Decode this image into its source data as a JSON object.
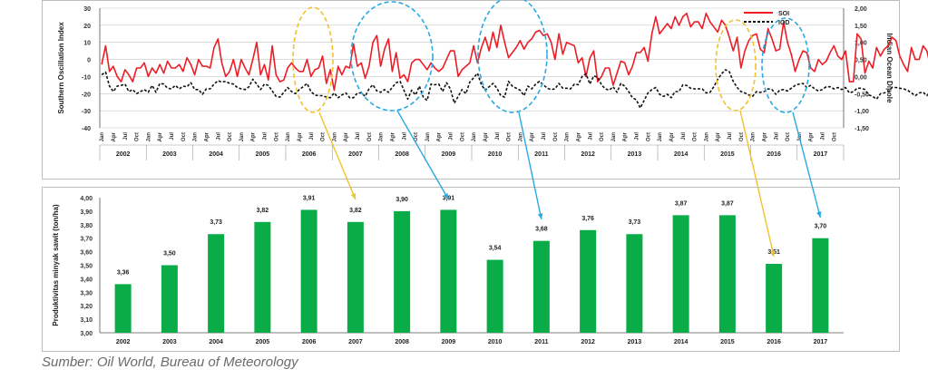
{
  "colors": {
    "soi": "#ee1c25",
    "iod": "#111111",
    "bar": "#0aac48",
    "yellow_arrow": "#f2c12e",
    "blue_arrow": "#29a9e1",
    "grid": "#c8c8c8"
  },
  "chart_data": [
    {
      "type": "line",
      "title": "",
      "ylabel": "Southern Oscillation Index",
      "y2label": "Indian Ocean Dipole",
      "ylim": [
        -40,
        30
      ],
      "y_ticks": [
        "30",
        "20",
        "10",
        "0",
        "-10",
        "-20",
        "-30",
        "-40"
      ],
      "y2lim": [
        -1.5,
        2.0
      ],
      "y2_ticks": [
        "2,00",
        "1,50",
        "1,00",
        "0,50",
        "0,00",
        "-0,50",
        "-1,00",
        "-1,50"
      ],
      "month_ticks": [
        "Jan",
        "Apr",
        "Jul",
        "Oct"
      ],
      "years": [
        "2002",
        "2003",
        "2004",
        "2005",
        "2006",
        "2007",
        "2008",
        "2009",
        "2010",
        "2011",
        "2012",
        "2013",
        "2014",
        "2015",
        "2016",
        "2017"
      ],
      "legend": [
        "SOI",
        "IOD"
      ],
      "legend_position": "top-right",
      "series": [
        {
          "name": "SOI",
          "axis": "left",
          "values": [
            -3,
            8,
            -7,
            -4,
            -10,
            -13,
            -6,
            -9,
            -13,
            -5,
            -5,
            -2,
            -10,
            -5,
            -8,
            -3,
            -8,
            -1,
            -5,
            -5,
            -3,
            -7,
            1,
            -3,
            -9,
            0,
            -4,
            -4,
            -5,
            7,
            12,
            -2,
            -10,
            -7,
            0,
            -10,
            0,
            -5,
            -9,
            0,
            10,
            -9,
            -3,
            -12,
            8,
            -9,
            -13,
            -12,
            -5,
            -2,
            -5,
            -7,
            -7,
            0,
            -10,
            -6,
            -5,
            2,
            -14,
            -6,
            -18,
            -4,
            -9,
            -4,
            -5,
            9,
            -4,
            -2,
            -11,
            -4,
            10,
            14,
            -4,
            6,
            12,
            -7,
            4,
            -11,
            -9,
            -13,
            -2,
            0,
            0,
            -3,
            -6,
            -2,
            -5,
            -7,
            -5,
            0,
            5,
            5,
            -10,
            -6,
            -4,
            -2,
            8,
            -2,
            7,
            13,
            5,
            16,
            7,
            20,
            10,
            1,
            4,
            7,
            11,
            6,
            10,
            12,
            16,
            17,
            14,
            15,
            10,
            0,
            15,
            3,
            10,
            9,
            8,
            -2,
            1,
            -10,
            1,
            5,
            -13,
            -10,
            -5,
            -5,
            -15,
            -8,
            -1,
            -2,
            -9,
            -4,
            4,
            4,
            7,
            -1,
            15,
            25,
            15,
            18,
            21,
            18,
            25,
            20,
            25,
            27,
            19,
            22,
            22,
            18,
            27,
            22,
            19,
            16,
            23,
            20,
            13,
            5,
            13,
            -5,
            5,
            11,
            14,
            15,
            6,
            4,
            18,
            12,
            5,
            6,
            22,
            10,
            3,
            -7,
            0,
            5,
            4,
            -5,
            -7,
            0,
            -3,
            -1,
            4,
            8,
            2,
            0,
            5,
            -13,
            -13,
            15,
            12,
            -8,
            -1,
            -5,
            7,
            2,
            6,
            8,
            13,
            11,
            2,
            -3,
            -7,
            7,
            0,
            0,
            8,
            5,
            -5,
            3,
            0,
            -3,
            10,
            -2,
            -11,
            -3,
            0,
            9,
            4,
            -3,
            0,
            7,
            -8,
            -1,
            -8,
            -9,
            -11,
            -11,
            2,
            -15,
            -19,
            -18,
            -20,
            -16,
            -21,
            -11,
            -14,
            -16,
            -9,
            -8,
            -22,
            -22,
            -18,
            -19,
            1,
            -9,
            4,
            10,
            15,
            7,
            3,
            12,
            10,
            8,
            16,
            5,
            9,
            2,
            4,
            3,
            6,
            3,
            12,
            -5,
            -10,
            2,
            5,
            -8,
            6,
            9,
            10,
            4,
            6,
            9,
            12,
            8,
            8,
            13,
            0
          ]
        },
        {
          "name": "IOD",
          "axis": "right",
          "values": [
            0.05,
            0.13,
            -0.28,
            -0.44,
            -0.28,
            -0.26,
            -0.22,
            -0.44,
            -0.38,
            -0.5,
            -0.44,
            -0.38,
            -0.46,
            -0.26,
            -0.46,
            -0.2,
            -0.22,
            -0.34,
            -0.36,
            -0.26,
            -0.36,
            -0.28,
            -0.3,
            -0.18,
            -0.38,
            -0.38,
            -0.52,
            -0.36,
            -0.36,
            -0.22,
            -0.12,
            -0.16,
            -0.14,
            -0.2,
            -0.22,
            -0.32,
            -0.36,
            -0.38,
            -0.3,
            -0.08,
            -0.22,
            -0.38,
            -0.22,
            -0.26,
            -0.42,
            -0.58,
            -0.6,
            -0.46,
            -0.32,
            -0.44,
            -0.5,
            -0.38,
            -0.3,
            -0.2,
            -0.44,
            -0.54,
            -0.56,
            -0.56,
            -0.6,
            -0.62,
            -0.48,
            -0.62,
            -0.54,
            -0.48,
            -0.62,
            -0.62,
            -0.48,
            -0.48,
            -0.58,
            -0.36,
            -0.24,
            -0.42,
            -0.46,
            -0.38,
            -0.46,
            -0.32,
            -0.18,
            -0.14,
            -0.4,
            -0.66,
            -0.4,
            -0.54,
            -0.28,
            -0.6,
            -0.7,
            -0.22,
            -0.24,
            -0.22,
            -0.44,
            -0.18,
            -0.36,
            -0.78,
            -0.58,
            -0.38,
            -0.5,
            -0.16,
            -0.04,
            0.1,
            -0.24,
            -0.4,
            -0.3,
            -0.2,
            -0.34,
            -0.56,
            -0.6,
            -0.14,
            -0.28,
            -0.34,
            -0.4,
            -0.56,
            -0.28,
            -0.36,
            -0.22,
            -0.14,
            -0.24,
            -0.34,
            -0.38,
            -0.36,
            -0.2,
            -0.34,
            -0.34,
            -0.36,
            -0.22,
            -0.24,
            0.0,
            0.08,
            -0.22,
            0.02,
            -0.02,
            -0.24,
            -0.36,
            -0.4,
            -0.3,
            -0.46,
            -0.2,
            -0.28,
            -0.44,
            -0.62,
            -0.68,
            -0.92,
            -0.7,
            -0.48,
            -0.38,
            -0.32,
            -0.52,
            -0.58,
            -0.52,
            -0.62,
            -0.44,
            -0.44,
            -0.24,
            -0.26,
            -0.34,
            -0.36,
            -0.36,
            -0.36,
            -0.48,
            -0.46,
            -0.3,
            -0.08,
            0.08,
            0.2,
            0.14,
            -0.14,
            -0.32,
            -0.44,
            -0.48,
            -0.54,
            -0.58,
            -0.44,
            -0.46,
            -0.44,
            -0.36,
            -0.38,
            -0.52,
            -0.4,
            -0.38,
            -0.42,
            -0.34,
            -0.26,
            -0.22,
            -0.2,
            -0.32,
            -0.26,
            -0.36,
            -0.42,
            -0.38,
            -0.3,
            -0.3,
            -0.36,
            -0.32,
            -0.38,
            -0.32,
            -0.48,
            -0.44,
            -0.34,
            -0.34,
            -0.38,
            -0.54,
            -0.58,
            -0.66,
            -0.5,
            -0.48,
            -0.44,
            -0.32,
            -0.32,
            -0.34,
            -0.36,
            -0.4,
            -0.48,
            -0.56,
            -0.48,
            -0.46,
            -0.56,
            -0.42,
            -0.46,
            -0.36,
            -0.44,
            -0.48,
            -0.34,
            -0.4,
            -0.32,
            -0.22,
            -0.1,
            -0.2,
            -0.26,
            -0.36,
            -0.34,
            -0.3,
            -0.26,
            -0.22,
            -0.1,
            -0.02,
            0.0,
            -0.02,
            0.08,
            0.26,
            0.34,
            0.4,
            0.35,
            0.16,
            0.02,
            -0.06,
            -0.1,
            -0.1,
            -0.2,
            -0.36,
            -0.56,
            -0.78,
            -0.92,
            -0.88,
            -1.02,
            -1.12,
            -0.88,
            -0.76,
            -0.56,
            -0.44,
            -0.48,
            -0.3,
            -0.34,
            -0.34,
            -0.36,
            -0.3,
            -0.2,
            -0.2,
            -0.08,
            -0.2,
            -0.22,
            -0.28,
            -0.36,
            -0.22,
            -0.14,
            -0.12,
            -0.24,
            -0.32,
            -0.28,
            -0.28,
            -0.12,
            -0.2,
            -0.4,
            -0.24,
            -0.12,
            -0.16,
            -0.2,
            -0.18,
            -0.28,
            -0.3,
            -0.34,
            -0.36,
            -0.5
          ]
        }
      ]
    },
    {
      "type": "bar",
      "title": "",
      "ylabel": "Produktivitas minyak sawit (ton/ha)",
      "ylim": [
        3.0,
        4.0
      ],
      "y_ticks": [
        "4,00",
        "3,90",
        "3,80",
        "3,70",
        "3,60",
        "3,50",
        "3,40",
        "3,30",
        "3,20",
        "3,10",
        "3,00"
      ],
      "categories": [
        "2002",
        "2003",
        "2004",
        "2005",
        "2006",
        "2007",
        "2008",
        "2009",
        "2010",
        "2011",
        "2012",
        "2013",
        "2014",
        "2015",
        "2016",
        "2017"
      ],
      "values": [
        3.36,
        3.5,
        3.73,
        3.82,
        3.91,
        3.82,
        3.9,
        3.91,
        3.54,
        3.68,
        3.76,
        3.73,
        3.87,
        3.87,
        3.51,
        3.7
      ],
      "labels": [
        "3,36",
        "3,50",
        "3,73",
        "3,82",
        "3,91",
        "3,82",
        "3,90",
        "3,91",
        "3,54",
        "3,68",
        "3,76",
        "3,73",
        "3,87",
        "3,87",
        "3,51",
        "3,70"
      ]
    }
  ],
  "source": "Sumber: Oil World, Bureau of Meteorology"
}
